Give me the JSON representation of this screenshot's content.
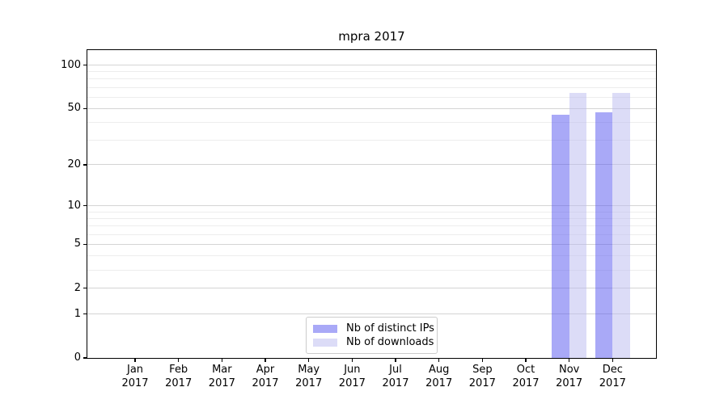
{
  "figure": {
    "title": "mpra 2017"
  },
  "chart_data": {
    "type": "bar",
    "title": "mpra 2017",
    "categories": [
      "Jan 2017",
      "Feb 2017",
      "Mar 2017",
      "Apr 2017",
      "May 2017",
      "Jun 2017",
      "Jul 2017",
      "Aug 2017",
      "Sep 2017",
      "Oct 2017",
      "Nov 2017",
      "Dec 2017"
    ],
    "series": [
      {
        "name": "Nb of distinct IPs",
        "color": "#a9a9f7",
        "fill": "rgba(83,83,239,0.5)",
        "values": [
          0,
          0,
          0,
          0,
          0,
          0,
          0,
          0,
          0,
          0,
          45,
          47
        ]
      },
      {
        "name": "Nb of downloads",
        "color": "#dcdcf7",
        "fill": "rgba(185,185,239,0.5)",
        "values": [
          0,
          0,
          0,
          0,
          0,
          0,
          0,
          0,
          0,
          0,
          64,
          64
        ]
      }
    ],
    "xlabel": "",
    "ylabel": "",
    "yscale": "log1p",
    "y_ticks": [
      0,
      1,
      2,
      5,
      10,
      20,
      50,
      100
    ],
    "ylim": [
      0,
      127
    ],
    "xlim": [
      -1.1,
      12.0
    ],
    "bar_width": 0.4,
    "grid": true,
    "legend_location": "lower center"
  }
}
